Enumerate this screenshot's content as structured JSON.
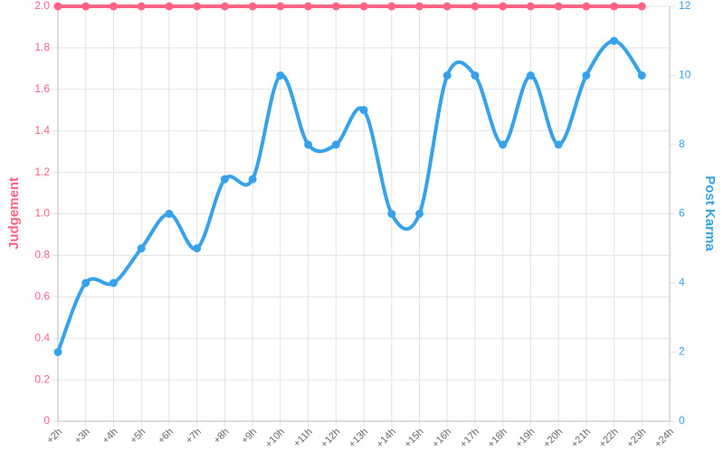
{
  "chart_data": {
    "type": "line",
    "categories": [
      "+2h",
      "+3h",
      "+4h",
      "+5h",
      "+6h",
      "+7h",
      "+8h",
      "+9h",
      "+10h",
      "+11h",
      "+12h",
      "+13h",
      "+14h",
      "+15h",
      "+16h",
      "+17h",
      "+18h",
      "+19h",
      "+20h",
      "+21h",
      "+22h",
      "+23h",
      "+24h"
    ],
    "series": [
      {
        "name": "Judgement",
        "color": "#ff6384",
        "axis": "y",
        "values": [
          2,
          2,
          2,
          2,
          2,
          2,
          2,
          2,
          2,
          2,
          2,
          2,
          2,
          2,
          2,
          2,
          2,
          2,
          2,
          2,
          2,
          2,
          null
        ]
      },
      {
        "name": "Post Karma",
        "color": "#36a2eb",
        "axis": "y2",
        "values": [
          2,
          4,
          4,
          5,
          6,
          5,
          7,
          7,
          10,
          8,
          8,
          9,
          6,
          6,
          10,
          10,
          8,
          10,
          8,
          10,
          11,
          10,
          null
        ]
      }
    ],
    "ylabel": "Judgement",
    "y2label": "Post Karma",
    "ylim": [
      0,
      2
    ],
    "yticks": [
      0,
      0.2,
      0.4,
      0.6,
      0.8,
      {
        "value": 1,
        "label": "1.0"
      },
      1.2,
      1.4,
      1.6,
      1.8,
      {
        "value": 2,
        "label": "2.0"
      }
    ],
    "y2lim": [
      0,
      12
    ],
    "y2ticks": [
      0,
      2,
      4,
      6,
      8,
      10,
      12
    ],
    "grid": true
  }
}
